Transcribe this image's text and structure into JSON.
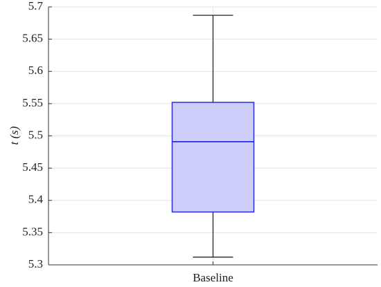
{
  "chart_data": {
    "type": "box",
    "ylabel": "t (s)",
    "categories": [
      "Baseline"
    ],
    "boxes": [
      {
        "min": 5.312,
        "q1": 5.382,
        "median": 5.491,
        "q3": 5.552,
        "max": 5.687
      }
    ],
    "color": "#2b2bd9",
    "fill": "#c9c9fb",
    "ylim": [
      5.3,
      5.7
    ],
    "yticks": [
      5.3,
      5.35,
      5.4,
      5.45,
      5.5,
      5.55,
      5.6,
      5.65,
      5.7
    ],
    "grid": true
  }
}
